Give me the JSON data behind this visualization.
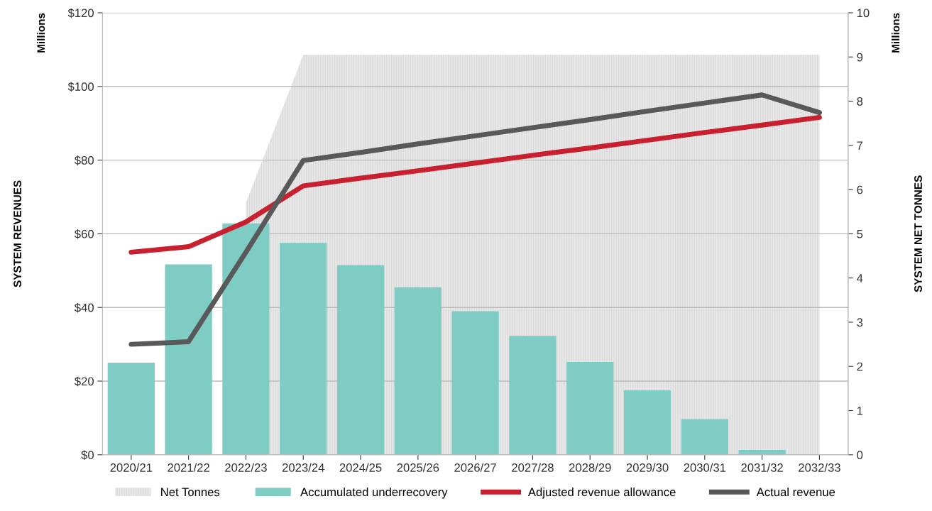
{
  "chart_data": {
    "type": "bar",
    "categories": [
      "2020/21",
      "2021/22",
      "2022/23",
      "2023/24",
      "2024/25",
      "2025/26",
      "2026/27",
      "2027/28",
      "2028/29",
      "2029/30",
      "2030/31",
      "2031/32",
      "2032/33"
    ],
    "series": [
      {
        "name": "Net Tonnes",
        "type": "area",
        "axis": "y2",
        "color": "#e8e8e8",
        "values": [
          null,
          null,
          5.7,
          9.05,
          9.05,
          9.05,
          9.05,
          9.05,
          9.05,
          9.05,
          9.05,
          9.05,
          9.05
        ]
      },
      {
        "name": "Accumulated underrecovery",
        "color": "#7fccc5",
        "values": [
          25,
          51.7,
          62.8,
          57.5,
          51.5,
          45.5,
          39,
          32.3,
          25.2,
          17.5,
          9.7,
          1.3,
          null
        ]
      },
      {
        "name": "Adjusted revenue allowance",
        "type": "line",
        "color": "#c8202f",
        "values": [
          55,
          56.5,
          63.2,
          73,
          75.1,
          77.1,
          79.2,
          81.3,
          83.3,
          85.4,
          87.5,
          89.5,
          91.6
        ]
      },
      {
        "name": "Actual revenue",
        "type": "line",
        "color": "#595959",
        "values": [
          30,
          30.7,
          55,
          79.9,
          82.1,
          84.4,
          86.6,
          88.8,
          91,
          93.3,
          95.5,
          97.7,
          92.9
        ]
      }
    ],
    "ylabel": "SYSTEM REVENUES",
    "y2label": "SYSTEM NET TONNES",
    "annotations": [
      "Millions",
      "Millions"
    ],
    "ylim": [
      0,
      120
    ],
    "yticks": [
      {
        "value": 0,
        "label": "$0"
      },
      {
        "value": 20,
        "label": "$20"
      },
      {
        "value": 40,
        "label": "$40"
      },
      {
        "value": 60,
        "label": "$60"
      },
      {
        "value": 80,
        "label": "$80"
      },
      {
        "value": 100,
        "label": "$100"
      },
      {
        "value": 120,
        "label": "$120"
      }
    ],
    "y2lim": [
      0,
      10
    ],
    "y2ticks": [
      0,
      1,
      2,
      3,
      4,
      5,
      6,
      7,
      8,
      9,
      10
    ],
    "grid": "y",
    "legend": "bottom",
    "marker": "none",
    "line_style": "solid"
  }
}
